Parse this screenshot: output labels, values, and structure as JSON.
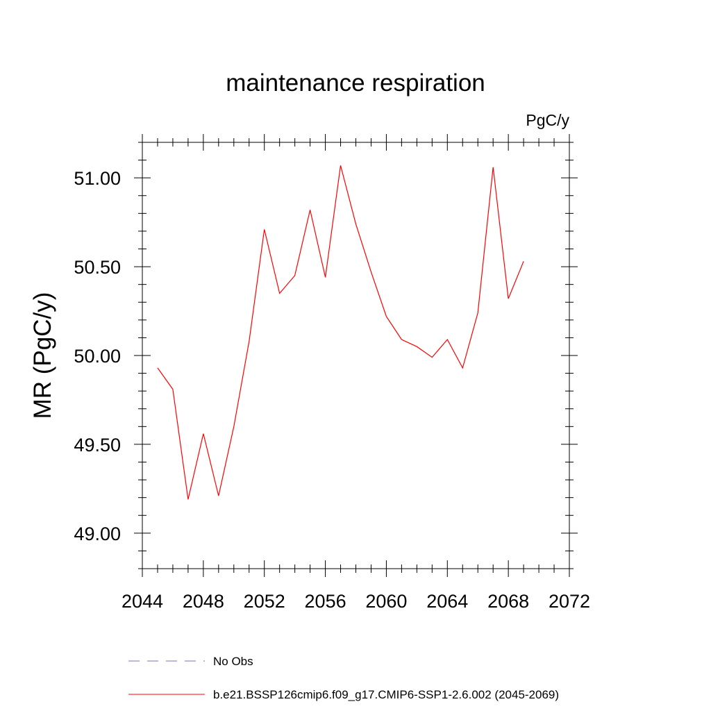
{
  "chart_data": {
    "type": "line",
    "title": "maintenance respiration",
    "units_label": "PgC/y",
    "ylabel": "MR  (PgC/y)",
    "xlabel": "",
    "xlim": [
      2044,
      2072
    ],
    "ylim": [
      48.8,
      51.2
    ],
    "xticks": [
      2044,
      2048,
      2052,
      2056,
      2060,
      2064,
      2068,
      2072
    ],
    "xtick_labels": [
      "2044",
      "2048",
      "2052",
      "2056",
      "2060",
      "2064",
      "2068",
      "2072"
    ],
    "yticks": [
      49.0,
      49.5,
      50.0,
      50.5,
      51.0
    ],
    "ytick_labels": [
      "49.00",
      "49.50",
      "50.00",
      "50.50",
      "51.00"
    ],
    "grid": false,
    "legend_position": "bottom",
    "series": [
      {
        "name": "b.e21.BSSP126cmip6.f09_g17.CMIP6-SSP1-2.6.002 (2045-2069)",
        "color": "#ff0000",
        "dash": "solid",
        "x": [
          2045,
          2046,
          2047,
          2048,
          2049,
          2050,
          2051,
          2052,
          2053,
          2054,
          2055,
          2056,
          2057,
          2058,
          2059,
          2060,
          2061,
          2062,
          2063,
          2064,
          2065,
          2066,
          2067,
          2068,
          2069
        ],
        "y": [
          49.93,
          49.81,
          49.19,
          49.56,
          49.21,
          49.6,
          50.08,
          50.71,
          50.35,
          50.45,
          50.82,
          50.44,
          51.07,
          50.74,
          50.47,
          50.22,
          50.09,
          50.05,
          49.99,
          50.09,
          49.93,
          50.24,
          51.06,
          50.32,
          50.53
        ]
      }
    ],
    "legend": [
      {
        "label": "No Obs",
        "color": "#7b6fc2",
        "dash": "dashed"
      },
      {
        "label": "b.e21.BSSP126cmip6.f09_g17.CMIP6-SSP1-2.6.002 (2045-2069)",
        "color": "#ff0000",
        "dash": "solid"
      }
    ]
  }
}
